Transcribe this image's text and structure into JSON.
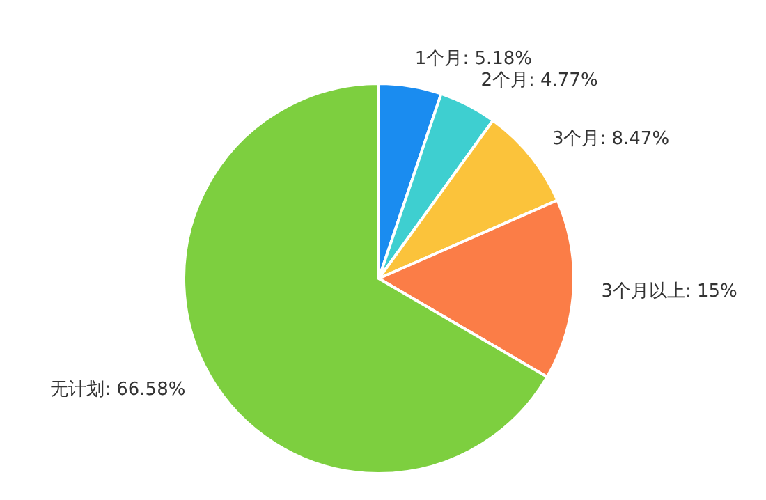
{
  "chart_data": {
    "type": "pie",
    "categories": [
      "1个月",
      "2个月",
      "3个月",
      "3个月以上",
      "无计划"
    ],
    "values": [
      5.18,
      4.77,
      8.47,
      15,
      66.58
    ],
    "colors": [
      "#1a8cf0",
      "#3ecfd0",
      "#fbc33b",
      "#fb7d47",
      "#7dcf3f"
    ],
    "value_labels": [
      "5.18%",
      "4.77%",
      "8.47%",
      "15%",
      "66.58%"
    ]
  }
}
